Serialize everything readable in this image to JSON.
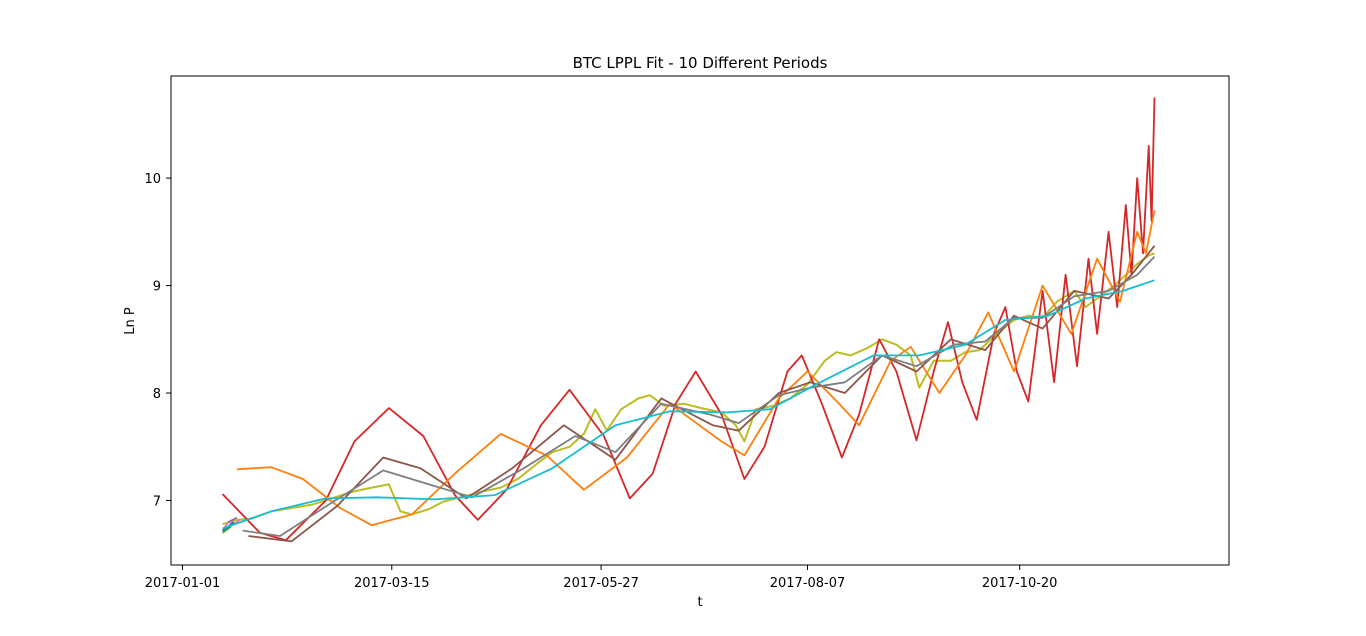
{
  "chart_data": {
    "type": "line",
    "title": "BTC LPPL Fit - 10 Different Periods",
    "xlabel": "t",
    "ylabel": "Ln P",
    "xlim": [
      "2016-12-28",
      "2018-01-01"
    ],
    "ylim": [
      6.4,
      10.95
    ],
    "x_ticks": [
      "2017-01-01",
      "2017-03-15",
      "2017-05-27",
      "2017-08-07",
      "2017-10-20"
    ],
    "y_ticks": [
      7,
      8,
      9,
      10
    ],
    "grid": false,
    "legend": "none",
    "series": [
      {
        "color": "#bcbd22",
        "kind": "price",
        "points": [
          [
            "2017-01-15",
            6.78
          ],
          [
            "2017-01-20",
            6.82
          ],
          [
            "2017-01-25",
            6.83
          ],
          [
            "2017-02-01",
            6.9
          ],
          [
            "2017-02-08",
            6.93
          ],
          [
            "2017-02-15",
            6.96
          ],
          [
            "2017-02-22",
            7.02
          ],
          [
            "2017-03-01",
            7.08
          ],
          [
            "2017-03-08",
            7.12
          ],
          [
            "2017-03-14",
            7.15
          ],
          [
            "2017-03-18",
            6.9
          ],
          [
            "2017-03-22",
            6.87
          ],
          [
            "2017-03-28",
            6.92
          ],
          [
            "2017-04-02",
            6.99
          ],
          [
            "2017-04-08",
            7.03
          ],
          [
            "2017-04-15",
            7.08
          ],
          [
            "2017-04-22",
            7.12
          ],
          [
            "2017-04-28",
            7.2
          ],
          [
            "2017-05-05",
            7.35
          ],
          [
            "2017-05-10",
            7.45
          ],
          [
            "2017-05-16",
            7.5
          ],
          [
            "2017-05-21",
            7.62
          ],
          [
            "2017-05-25",
            7.85
          ],
          [
            "2017-05-29",
            7.65
          ],
          [
            "2017-06-03",
            7.85
          ],
          [
            "2017-06-09",
            7.95
          ],
          [
            "2017-06-13",
            7.98
          ],
          [
            "2017-06-18",
            7.88
          ],
          [
            "2017-06-25",
            7.9
          ],
          [
            "2017-07-01",
            7.86
          ],
          [
            "2017-07-08",
            7.82
          ],
          [
            "2017-07-13",
            7.7
          ],
          [
            "2017-07-16",
            7.55
          ],
          [
            "2017-07-20",
            7.85
          ],
          [
            "2017-07-26",
            7.88
          ],
          [
            "2017-08-01",
            7.95
          ],
          [
            "2017-08-07",
            8.08
          ],
          [
            "2017-08-13",
            8.3
          ],
          [
            "2017-08-17",
            8.38
          ],
          [
            "2017-08-22",
            8.35
          ],
          [
            "2017-08-28",
            8.42
          ],
          [
            "2017-09-02",
            8.5
          ],
          [
            "2017-09-07",
            8.45
          ],
          [
            "2017-09-12",
            8.35
          ],
          [
            "2017-09-15",
            8.05
          ],
          [
            "2017-09-20",
            8.3
          ],
          [
            "2017-09-26",
            8.3
          ],
          [
            "2017-10-01",
            8.38
          ],
          [
            "2017-10-06",
            8.4
          ],
          [
            "2017-10-12",
            8.55
          ],
          [
            "2017-10-18",
            8.68
          ],
          [
            "2017-10-23",
            8.72
          ],
          [
            "2017-10-28",
            8.7
          ],
          [
            "2017-11-02",
            8.85
          ],
          [
            "2017-11-08",
            8.95
          ],
          [
            "2017-11-12",
            8.8
          ],
          [
            "2017-11-16",
            8.88
          ],
          [
            "2017-11-22",
            9.0
          ],
          [
            "2017-11-26",
            9.1
          ],
          [
            "2017-11-30",
            9.2
          ],
          [
            "2017-12-04",
            9.28
          ],
          [
            "2017-12-06",
            9.3
          ]
        ]
      },
      {
        "color": "#d62728",
        "kind": "fit",
        "points": [
          [
            "2017-01-15",
            7.06
          ],
          [
            "2017-01-28",
            6.7
          ],
          [
            "2017-02-06",
            6.63
          ],
          [
            "2017-02-20",
            7.0
          ],
          [
            "2017-03-02",
            7.55
          ],
          [
            "2017-03-14",
            7.86
          ],
          [
            "2017-03-26",
            7.6
          ],
          [
            "2017-04-06",
            7.05
          ],
          [
            "2017-04-14",
            6.82
          ],
          [
            "2017-04-24",
            7.1
          ],
          [
            "2017-05-06",
            7.7
          ],
          [
            "2017-05-16",
            8.03
          ],
          [
            "2017-05-28",
            7.6
          ],
          [
            "2017-06-06",
            7.02
          ],
          [
            "2017-06-14",
            7.25
          ],
          [
            "2017-06-22",
            7.9
          ],
          [
            "2017-06-29",
            8.2
          ],
          [
            "2017-07-08",
            7.8
          ],
          [
            "2017-07-16",
            7.2
          ],
          [
            "2017-07-23",
            7.5
          ],
          [
            "2017-07-31",
            8.2
          ],
          [
            "2017-08-05",
            8.35
          ],
          [
            "2017-08-12",
            7.9
          ],
          [
            "2017-08-19",
            7.4
          ],
          [
            "2017-08-25",
            7.8
          ],
          [
            "2017-09-01",
            8.5
          ],
          [
            "2017-09-07",
            8.2
          ],
          [
            "2017-09-14",
            7.56
          ],
          [
            "2017-09-20",
            8.2
          ],
          [
            "2017-09-25",
            8.66
          ],
          [
            "2017-09-30",
            8.1
          ],
          [
            "2017-10-05",
            7.75
          ],
          [
            "2017-10-11",
            8.55
          ],
          [
            "2017-10-15",
            8.8
          ],
          [
            "2017-10-19",
            8.2
          ],
          [
            "2017-10-23",
            7.92
          ],
          [
            "2017-10-28",
            8.95
          ],
          [
            "2017-11-01",
            8.1
          ],
          [
            "2017-11-05",
            9.1
          ],
          [
            "2017-11-09",
            8.25
          ],
          [
            "2017-11-13",
            9.25
          ],
          [
            "2017-11-16",
            8.55
          ],
          [
            "2017-11-20",
            9.5
          ],
          [
            "2017-11-23",
            8.8
          ],
          [
            "2017-11-26",
            9.75
          ],
          [
            "2017-11-28",
            9.1
          ],
          [
            "2017-11-30",
            10.0
          ],
          [
            "2017-12-02",
            9.3
          ],
          [
            "2017-12-04",
            10.3
          ],
          [
            "2017-12-05",
            9.6
          ],
          [
            "2017-12-06",
            10.75
          ]
        ]
      },
      {
        "color": "#ff7f0e",
        "kind": "fit",
        "points": [
          [
            "2017-01-20",
            7.29
          ],
          [
            "2017-02-01",
            7.31
          ],
          [
            "2017-02-12",
            7.2
          ],
          [
            "2017-02-25",
            6.93
          ],
          [
            "2017-03-08",
            6.77
          ],
          [
            "2017-03-22",
            6.87
          ],
          [
            "2017-04-06",
            7.25
          ],
          [
            "2017-04-22",
            7.62
          ],
          [
            "2017-05-08",
            7.42
          ],
          [
            "2017-05-21",
            7.1
          ],
          [
            "2017-06-05",
            7.4
          ],
          [
            "2017-06-20",
            7.9
          ],
          [
            "2017-07-08",
            7.55
          ],
          [
            "2017-07-16",
            7.42
          ],
          [
            "2017-07-28",
            7.95
          ],
          [
            "2017-08-07",
            8.2
          ],
          [
            "2017-08-18",
            7.9
          ],
          [
            "2017-08-25",
            7.7
          ],
          [
            "2017-09-05",
            8.3
          ],
          [
            "2017-09-12",
            8.43
          ],
          [
            "2017-09-22",
            8.0
          ],
          [
            "2017-10-01",
            8.35
          ],
          [
            "2017-10-09",
            8.75
          ],
          [
            "2017-10-18",
            8.2
          ],
          [
            "2017-10-28",
            9.0
          ],
          [
            "2017-11-07",
            8.55
          ],
          [
            "2017-11-16",
            9.25
          ],
          [
            "2017-11-24",
            8.85
          ],
          [
            "2017-11-30",
            9.5
          ],
          [
            "2017-12-03",
            9.3
          ],
          [
            "2017-12-06",
            9.7
          ]
        ]
      },
      {
        "color": "#8c564b",
        "kind": "fit",
        "points": [
          [
            "2017-01-24",
            6.67
          ],
          [
            "2017-02-08",
            6.62
          ],
          [
            "2017-02-24",
            6.95
          ],
          [
            "2017-03-12",
            7.4
          ],
          [
            "2017-03-25",
            7.3
          ],
          [
            "2017-04-10",
            7.02
          ],
          [
            "2017-04-26",
            7.3
          ],
          [
            "2017-05-14",
            7.7
          ],
          [
            "2017-06-01",
            7.38
          ],
          [
            "2017-06-17",
            7.95
          ],
          [
            "2017-07-05",
            7.7
          ],
          [
            "2017-07-14",
            7.65
          ],
          [
            "2017-07-28",
            8.0
          ],
          [
            "2017-08-08",
            8.1
          ],
          [
            "2017-08-20",
            8.0
          ],
          [
            "2017-09-02",
            8.35
          ],
          [
            "2017-09-14",
            8.2
          ],
          [
            "2017-09-26",
            8.5
          ],
          [
            "2017-10-08",
            8.4
          ],
          [
            "2017-10-18",
            8.72
          ],
          [
            "2017-10-28",
            8.6
          ],
          [
            "2017-11-08",
            8.95
          ],
          [
            "2017-11-20",
            8.88
          ],
          [
            "2017-11-28",
            9.1
          ],
          [
            "2017-12-06",
            9.37
          ]
        ]
      },
      {
        "color": "#7f7f7f",
        "kind": "fit",
        "points": [
          [
            "2017-01-22",
            6.72
          ],
          [
            "2017-02-04",
            6.67
          ],
          [
            "2017-02-22",
            6.98
          ],
          [
            "2017-03-12",
            7.28
          ],
          [
            "2017-03-28",
            7.15
          ],
          [
            "2017-04-12",
            7.03
          ],
          [
            "2017-04-30",
            7.3
          ],
          [
            "2017-05-18",
            7.6
          ],
          [
            "2017-06-01",
            7.45
          ],
          [
            "2017-06-17",
            7.9
          ],
          [
            "2017-07-04",
            7.8
          ],
          [
            "2017-07-14",
            7.72
          ],
          [
            "2017-07-28",
            7.98
          ],
          [
            "2017-08-08",
            8.05
          ],
          [
            "2017-08-20",
            8.1
          ],
          [
            "2017-09-02",
            8.35
          ],
          [
            "2017-09-14",
            8.25
          ],
          [
            "2017-09-27",
            8.45
          ],
          [
            "2017-10-08",
            8.48
          ],
          [
            "2017-10-18",
            8.7
          ],
          [
            "2017-10-28",
            8.7
          ],
          [
            "2017-11-08",
            8.9
          ],
          [
            "2017-11-20",
            8.95
          ],
          [
            "2017-11-30",
            9.1
          ],
          [
            "2017-12-06",
            9.27
          ]
        ]
      },
      {
        "color": "#e377c2",
        "kind": "fit",
        "points": [
          [
            "2017-01-15",
            6.72
          ],
          [
            "2017-01-17",
            6.8
          ],
          [
            "2017-01-19",
            6.78
          ],
          [
            "2017-01-21",
            6.82
          ]
        ]
      },
      {
        "color": "#1f77b4",
        "kind": "fit",
        "points": [
          [
            "2017-01-15",
            6.72
          ],
          [
            "2017-01-17",
            6.76
          ],
          [
            "2017-01-19",
            6.8
          ]
        ]
      },
      {
        "color": "#9467bd",
        "kind": "fit",
        "points": [
          [
            "2017-01-17",
            6.8
          ],
          [
            "2017-01-20",
            6.84
          ]
        ]
      },
      {
        "color": "#2ca02c",
        "kind": "fit",
        "points": [
          [
            "2017-01-15",
            6.7
          ],
          [
            "2017-01-18",
            6.76
          ]
        ]
      },
      {
        "color": "#17becf",
        "kind": "fit",
        "points": [
          [
            "2017-01-15",
            6.74
          ],
          [
            "2017-02-01",
            6.9
          ],
          [
            "2017-02-20",
            7.02
          ],
          [
            "2017-03-10",
            7.03
          ],
          [
            "2017-03-30",
            7.01
          ],
          [
            "2017-04-20",
            7.05
          ],
          [
            "2017-05-10",
            7.3
          ],
          [
            "2017-06-01",
            7.7
          ],
          [
            "2017-06-20",
            7.83
          ],
          [
            "2017-07-10",
            7.82
          ],
          [
            "2017-07-25",
            7.85
          ],
          [
            "2017-08-10",
            8.08
          ],
          [
            "2017-08-30",
            8.35
          ],
          [
            "2017-09-15",
            8.35
          ],
          [
            "2017-10-01",
            8.45
          ],
          [
            "2017-10-15",
            8.68
          ],
          [
            "2017-10-30",
            8.72
          ],
          [
            "2017-11-12",
            8.88
          ],
          [
            "2017-11-25",
            8.95
          ],
          [
            "2017-12-06",
            9.05
          ]
        ]
      }
    ]
  }
}
